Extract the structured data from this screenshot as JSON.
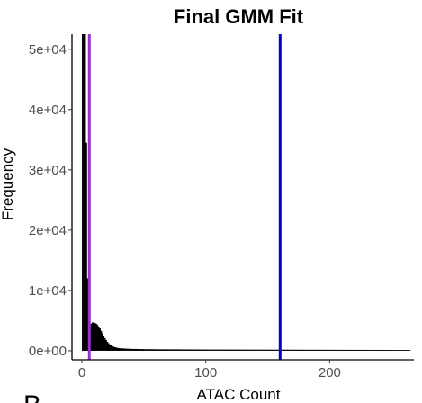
{
  "chart_data": {
    "type": "bar",
    "title": "Final GMM Fit",
    "xlabel": "ATAC Count",
    "ylabel": "Frequency",
    "x_ticks": [
      0,
      100,
      200
    ],
    "x_tick_labels": [
      "0",
      "100",
      "200"
    ],
    "y_ticks": [
      0,
      10000,
      20000,
      30000,
      40000,
      50000
    ],
    "y_tick_labels": [
      "0e+00",
      "1e+04",
      "2e+04",
      "3e+04",
      "4e+04",
      "5e+04"
    ],
    "xlim": [
      -8,
      268
    ],
    "ylim": [
      -1500,
      52500
    ],
    "grid": false,
    "series": [
      {
        "values": [
          {
            "x": 0,
            "y": 52500
          },
          {
            "x": 1,
            "y": 52500
          },
          {
            "x": 2,
            "y": 52500
          },
          {
            "x": 3,
            "y": 34500
          },
          {
            "x": 4,
            "y": 12000
          },
          {
            "x": 5,
            "y": 6000
          },
          {
            "x": 6,
            "y": 4500
          },
          {
            "x": 7,
            "y": 4500
          },
          {
            "x": 8,
            "y": 4700
          },
          {
            "x": 9,
            "y": 4700
          },
          {
            "x": 10,
            "y": 4600
          },
          {
            "x": 11,
            "y": 4500
          },
          {
            "x": 12,
            "y": 4300
          },
          {
            "x": 13,
            "y": 4000
          },
          {
            "x": 14,
            "y": 3700
          },
          {
            "x": 15,
            "y": 3300
          },
          {
            "x": 16,
            "y": 2900
          },
          {
            "x": 17,
            "y": 2500
          },
          {
            "x": 18,
            "y": 2100
          },
          {
            "x": 19,
            "y": 1800
          },
          {
            "x": 20,
            "y": 1500
          },
          {
            "x": 21,
            "y": 1250
          },
          {
            "x": 22,
            "y": 1050
          },
          {
            "x": 23,
            "y": 900
          },
          {
            "x": 24,
            "y": 780
          },
          {
            "x": 25,
            "y": 680
          },
          {
            "x": 26,
            "y": 600
          },
          {
            "x": 27,
            "y": 540
          },
          {
            "x": 28,
            "y": 490
          },
          {
            "x": 29,
            "y": 450
          },
          {
            "x": 30,
            "y": 420
          },
          {
            "x": 32,
            "y": 390
          },
          {
            "x": 34,
            "y": 360
          },
          {
            "x": 36,
            "y": 340
          },
          {
            "x": 38,
            "y": 320
          },
          {
            "x": 40,
            "y": 300
          },
          {
            "x": 45,
            "y": 280
          },
          {
            "x": 50,
            "y": 260
          },
          {
            "x": 55,
            "y": 250
          },
          {
            "x": 60,
            "y": 240
          },
          {
            "x": 70,
            "y": 230
          },
          {
            "x": 80,
            "y": 220
          },
          {
            "x": 90,
            "y": 210
          },
          {
            "x": 100,
            "y": 200
          },
          {
            "x": 110,
            "y": 200
          },
          {
            "x": 120,
            "y": 195
          },
          {
            "x": 130,
            "y": 190
          },
          {
            "x": 140,
            "y": 185
          },
          {
            "x": 150,
            "y": 180
          },
          {
            "x": 160,
            "y": 180
          },
          {
            "x": 170,
            "y": 175
          },
          {
            "x": 180,
            "y": 170
          },
          {
            "x": 190,
            "y": 165
          },
          {
            "x": 200,
            "y": 160
          },
          {
            "x": 210,
            "y": 155
          },
          {
            "x": 220,
            "y": 150
          },
          {
            "x": 230,
            "y": 145
          },
          {
            "x": 240,
            "y": 140
          },
          {
            "x": 250,
            "y": 135
          },
          {
            "x": 260,
            "y": 130
          }
        ],
        "color": "#000000"
      }
    ],
    "vlines": [
      {
        "x": 6,
        "color": "#9933cc"
      },
      {
        "x": 160,
        "color": "#0000cc"
      }
    ]
  },
  "panel_letter": "B"
}
